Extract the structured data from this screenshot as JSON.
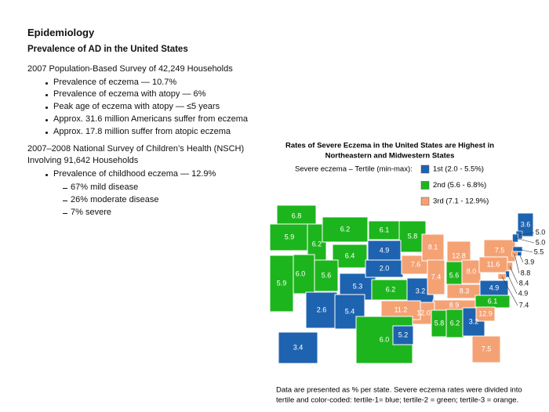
{
  "header": {
    "title": "Epidemiology",
    "subtitle": "Prevalence of AD in the United States"
  },
  "survey_2007": {
    "heading": "2007 Population-Based Survey of 42,249 Households",
    "bullets": [
      "Prevalence of eczema — 10.7%",
      "Prevalence of eczema with atopy — 6%",
      "Peak age of eczema with atopy — ≤5 years",
      "Approx. 31.6 million Americans suffer from eczema",
      "Approx. 17.8 million suffer from atopic eczema"
    ]
  },
  "nsch": {
    "heading_lines": [
      "2007–2008 National Survey of Children’s Health (NSCH)",
      "Involving 91,642 Households"
    ],
    "bullet": "Prevalence of childhood eczema — 12.9%",
    "sub_bullets": [
      "67% mild disease",
      "26% moderate disease",
      "7% severe"
    ]
  },
  "map": {
    "title_lines": [
      "Rates of Severe Eczema in the United States are Highest in",
      "Northeastern and Midwestern States"
    ],
    "legend": {
      "label": "Severe eczema – Tertile (min-max):",
      "items": [
        {
          "label": "1st (2.0 - 5.5%)",
          "color": "#1e63b0"
        },
        {
          "label": "2nd (5.6 - 6.8%)",
          "color": "#1db51d"
        },
        {
          "label": "3rd (7.1 - 12.9%)",
          "color": "#f4a274"
        }
      ]
    },
    "states": [
      {
        "label": "6.8",
        "color": "#1db51d"
      },
      {
        "label": "5.9",
        "color": "#1db51d"
      },
      {
        "label": "6.2",
        "color": "#1db51d"
      },
      {
        "label": "6.2",
        "color": "#1db51d"
      },
      {
        "label": "6.1",
        "color": "#1db51d"
      },
      {
        "label": "5.8",
        "color": "#1db51d"
      },
      {
        "label": "6.4",
        "color": "#1db51d"
      },
      {
        "label": "4.9",
        "color": "#1e63b0"
      },
      {
        "label": "6.0",
        "color": "#1db51d"
      },
      {
        "label": "5.9",
        "color": "#1db51d"
      },
      {
        "label": "5.6",
        "color": "#1db51d"
      },
      {
        "label": "5.3",
        "color": "#1e63b0"
      },
      {
        "label": "2.0",
        "color": "#1e63b0"
      },
      {
        "label": "6.2",
        "color": "#1db51d"
      },
      {
        "label": "7.6",
        "color": "#f4a274"
      },
      {
        "label": "3.2",
        "color": "#1e63b0"
      },
      {
        "label": "8.1",
        "color": "#f4a274"
      },
      {
        "label": "12.8",
        "color": "#f4a274"
      },
      {
        "label": "7.4",
        "color": "#f4a274"
      },
      {
        "label": "5.6",
        "color": "#1db51d"
      },
      {
        "label": "8.0",
        "color": "#f4a274"
      },
      {
        "label": "7.5",
        "color": "#f4a274"
      },
      {
        "label": "11.6",
        "color": "#f4a274"
      },
      {
        "label": "8.3",
        "color": "#f4a274"
      },
      {
        "label": "4.9",
        "color": "#1e63b0"
      },
      {
        "label": "6.1",
        "color": "#1db51d"
      },
      {
        "label": "8.9",
        "color": "#f4a274"
      },
      {
        "label": "12.0",
        "color": "#f4a274"
      },
      {
        "label": "11.2",
        "color": "#f4a274"
      },
      {
        "label": "2.6",
        "color": "#1e63b0"
      },
      {
        "label": "5.4",
        "color": "#1e63b0"
      },
      {
        "label": "6.0",
        "color": "#1db51d"
      },
      {
        "label": "5.2",
        "color": "#1e63b0"
      },
      {
        "label": "5.8",
        "color": "#1db51d"
      },
      {
        "label": "6.2",
        "color": "#1db51d"
      },
      {
        "label": "3.2",
        "color": "#1e63b0"
      },
      {
        "label": "12.9",
        "color": "#f4a274"
      },
      {
        "label": "7.5",
        "color": "#f4a274"
      },
      {
        "label": "3.4",
        "color": "#1e63b0"
      },
      {
        "label": "3.6",
        "color": "#1e63b0"
      },
      {
        "label": "5.0",
        "color": "#1e63b0"
      },
      {
        "label": "5.0",
        "color": "#1e63b0"
      },
      {
        "label": "5.5",
        "color": "#1e63b0"
      },
      {
        "label": "3.9",
        "color": "#1e63b0"
      },
      {
        "label": "8.8",
        "color": "#f4a274"
      },
      {
        "label": "8.4",
        "color": "#f4a274"
      },
      {
        "label": "4.9",
        "color": "#1e63b0"
      },
      {
        "label": "7.4",
        "color": "#f4a274"
      }
    ],
    "footnote_lines": [
      "Data are presented as % per state. Severe eczema rates were divided into",
      "tertile and color-coded: tertile-1= blue; tertile-2 = green; tertile-3 = orange."
    ]
  }
}
